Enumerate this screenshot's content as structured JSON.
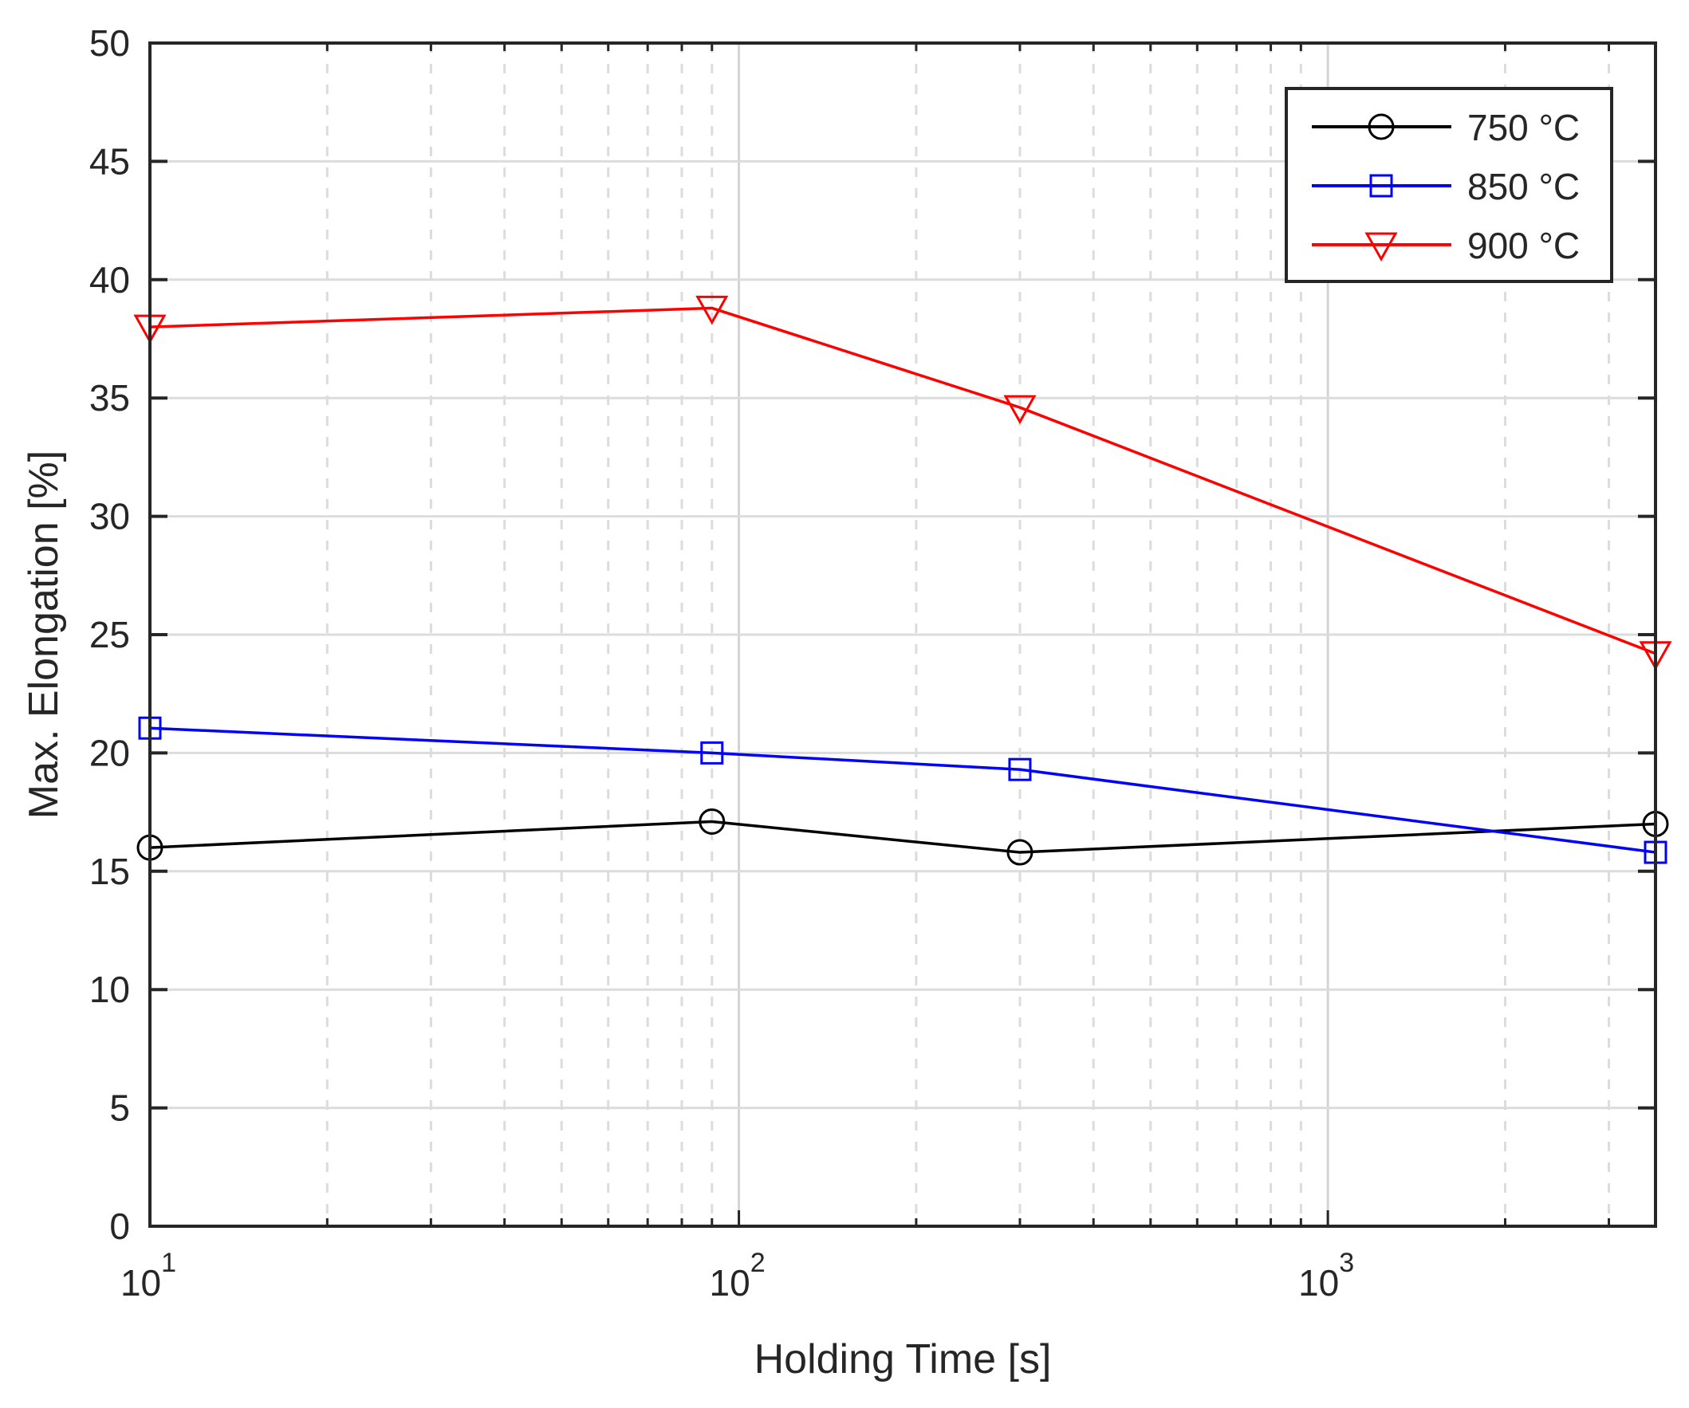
{
  "chart_data": {
    "type": "line",
    "title": "",
    "xlabel": "Holding Time [s]",
    "ylabel": "Max. Elongation [%]",
    "xscale": "log",
    "xlim": [
      10,
      3600
    ],
    "ylim": [
      0,
      50
    ],
    "grid": true,
    "legend_position": "top-right",
    "x": [
      10,
      90,
      300,
      3600
    ],
    "xticks": [
      {
        "value": 10,
        "base": "10",
        "exp": "1"
      },
      {
        "value": 100,
        "base": "10",
        "exp": "2"
      },
      {
        "value": 1000,
        "base": "10",
        "exp": "3"
      }
    ],
    "yticks": [
      0,
      5,
      10,
      15,
      20,
      25,
      30,
      35,
      40,
      45,
      50
    ],
    "series": [
      {
        "name": "750 °C",
        "color": "#000000",
        "marker": "circle",
        "values": [
          16.0,
          17.1,
          15.8,
          17.0
        ]
      },
      {
        "name": "850 °C",
        "color": "#0000ff",
        "marker": "square",
        "values": [
          21.05,
          20.0,
          19.3,
          15.8
        ]
      },
      {
        "name": "900 °C",
        "color": "#ff0000",
        "marker": "triangle-down",
        "values": [
          38.0,
          38.8,
          34.6,
          24.2
        ]
      }
    ]
  }
}
